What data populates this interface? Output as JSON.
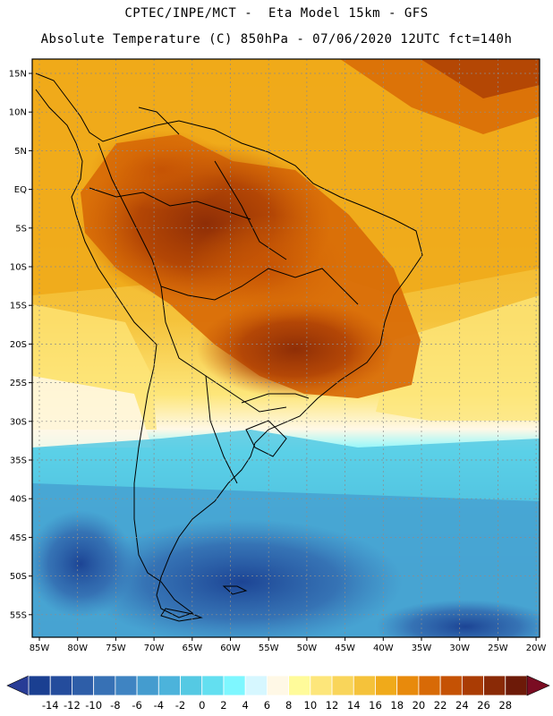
{
  "header": {
    "line1": "CPTEC/INPE/MCT -  Eta Model 15km - GFS",
    "line2": "Absolute Temperature (C) 850hPa - 07/06/2020 12UTC fct=140h"
  },
  "axes": {
    "lat_labels": [
      "15N",
      "10N",
      "5N",
      "EQ",
      "5S",
      "10S",
      "15S",
      "20S",
      "25S",
      "30S",
      "35S",
      "40S",
      "45S",
      "50S",
      "55S"
    ],
    "lon_labels": [
      "85W",
      "80W",
      "75W",
      "70W",
      "65W",
      "60W",
      "55W",
      "50W",
      "45W",
      "40W",
      "35W",
      "30W",
      "25W",
      "20W"
    ]
  },
  "colorbar": {
    "ticks": [
      "-14",
      "-12",
      "-10",
      "-8",
      "-6",
      "-4",
      "-2",
      "0",
      "2",
      "4",
      "6",
      "8",
      "10",
      "12",
      "14",
      "16",
      "18",
      "20",
      "22",
      "24",
      "26",
      "28"
    ],
    "colors": [
      "#1a3f91",
      "#244c9c",
      "#2e5ea8",
      "#3771b5",
      "#3f84c2",
      "#449ccf",
      "#4cb3db",
      "#55c9e3",
      "#63dff0",
      "#7ef7ff",
      "#d6f7ff",
      "#fff8e6",
      "#fffb9a",
      "#fde67a",
      "#f9d55a",
      "#f5c23a",
      "#f0aa1a",
      "#e88a0c",
      "#d86a06",
      "#c55204",
      "#aa3c04",
      "#8a2a06",
      "#6d1a08"
    ],
    "under_color": "#283c96",
    "over_color": "#7a0c22"
  }
}
